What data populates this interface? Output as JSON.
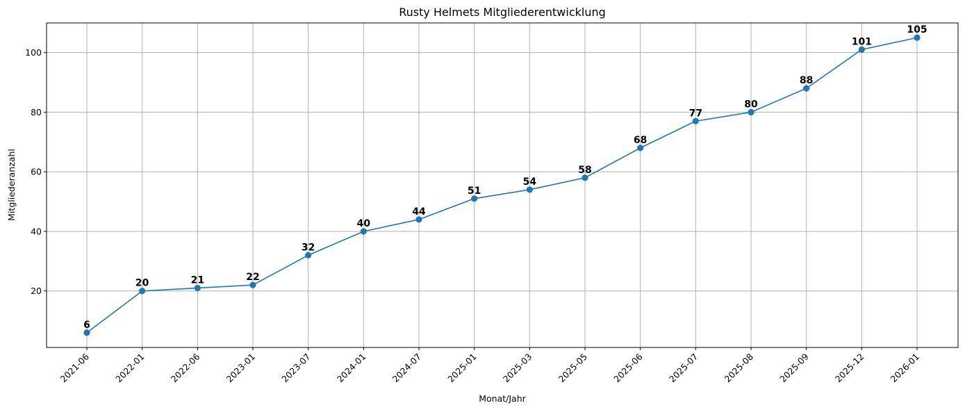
{
  "chart_data": {
    "type": "line",
    "title": "Rusty Helmets Mitgliederentwicklung",
    "xlabel": "Monat/Jahr",
    "ylabel": "Mitgliederanzahl",
    "categories": [
      "2021-06",
      "2022-01",
      "2022-06",
      "2023-01",
      "2023-07",
      "2024-01",
      "2024-07",
      "2025-01",
      "2025-03",
      "2025-05",
      "2025-06",
      "2025-07",
      "2025-08",
      "2025-09",
      "2025-12",
      "2026-01"
    ],
    "values": [
      6,
      20,
      21,
      22,
      32,
      40,
      44,
      51,
      54,
      58,
      68,
      77,
      80,
      88,
      101,
      105
    ],
    "data_labels": [
      "6",
      "20",
      "21",
      "22",
      "32",
      "40",
      "44",
      "51",
      "54",
      "58",
      "68",
      "77",
      "80",
      "88",
      "101",
      "105"
    ],
    "yticks": [
      20,
      40,
      60,
      80,
      100
    ],
    "ytick_labels": [
      "20",
      "40",
      "60",
      "80",
      "100"
    ],
    "ylim": [
      1.05,
      109.95
    ],
    "grid": true,
    "x_tick_rotation_deg": 45,
    "colors": {
      "line": "#1f77b4",
      "marker": "#1f77b4",
      "grid": "#b0b0b0"
    }
  }
}
